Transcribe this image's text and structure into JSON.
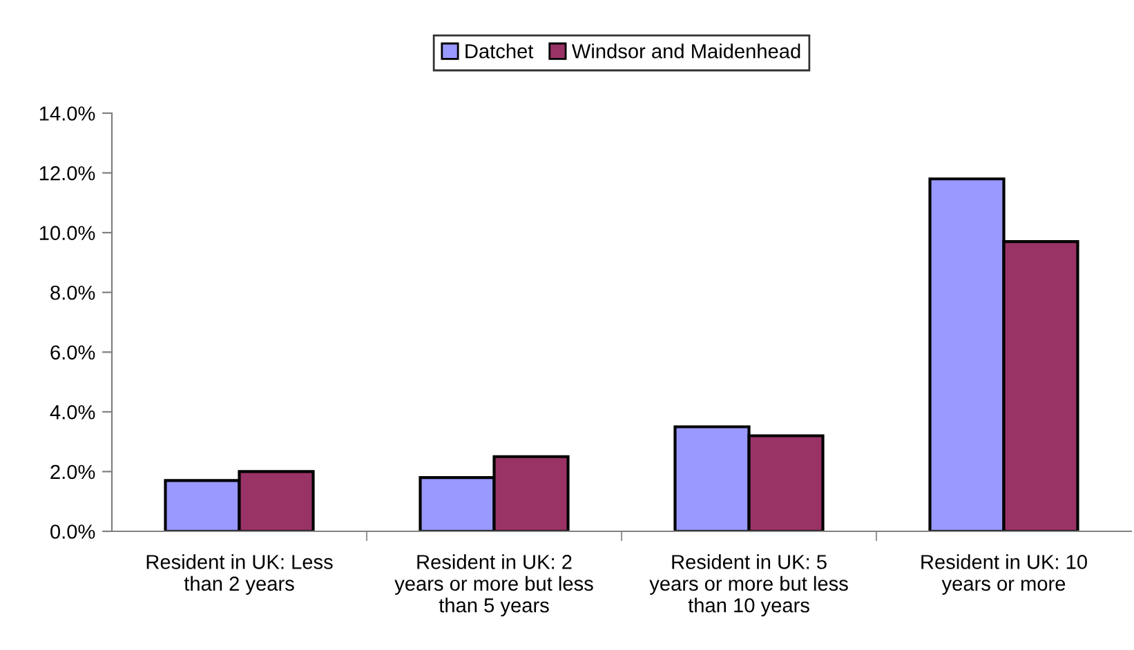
{
  "chart_data": {
    "type": "bar",
    "categories": [
      "Resident in UK: Less than 2 years",
      "Resident in UK: 2 years or more but less than 5 years",
      "Resident in UK: 5 years or more but less than 10 years",
      "Resident in UK: 10 years or more"
    ],
    "series": [
      {
        "name": "Datchet",
        "color": "#9999ff",
        "values": [
          1.7,
          1.8,
          3.5,
          11.8
        ]
      },
      {
        "name": "Windsor and Maidenhead",
        "color": "#993366",
        "values": [
          2.0,
          2.5,
          3.2,
          9.7
        ]
      }
    ],
    "ylim": [
      0,
      14
    ],
    "yticks": [
      {
        "value": 0,
        "label": "0.0%"
      },
      {
        "value": 2,
        "label": "2.0%"
      },
      {
        "value": 4,
        "label": "4.0%"
      },
      {
        "value": 6,
        "label": "6.0%"
      },
      {
        "value": 8,
        "label": "8.0%"
      },
      {
        "value": 10,
        "label": "10.0%"
      },
      {
        "value": 12,
        "label": "12.0%"
      },
      {
        "value": 14,
        "label": "14.0%"
      }
    ],
    "grid": false,
    "legend": "top"
  }
}
